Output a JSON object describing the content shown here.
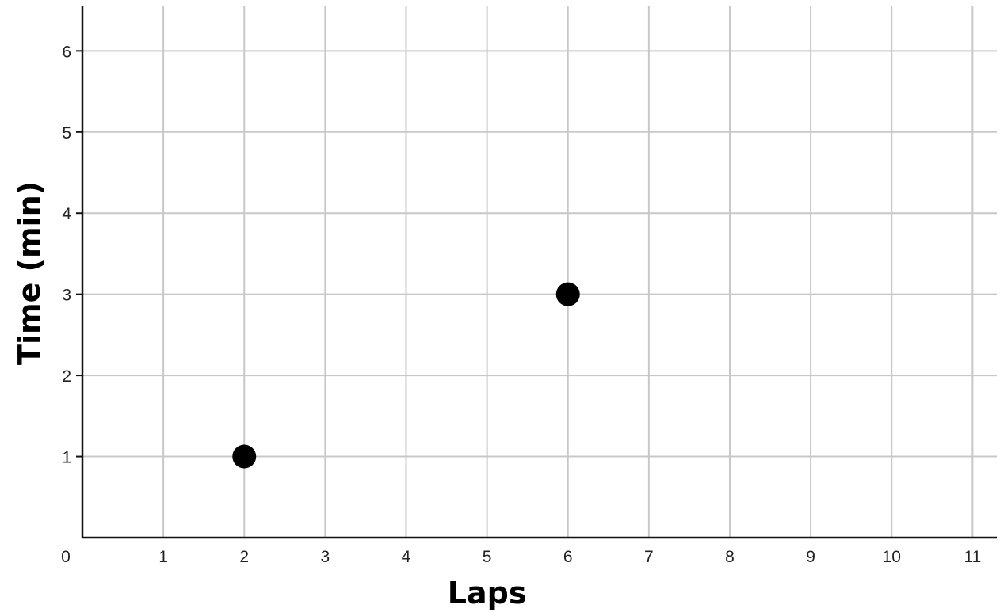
{
  "chart_data": {
    "type": "scatter",
    "title": "",
    "xlabel": "Laps",
    "ylabel": "Time (min)",
    "xlim": [
      0,
      11.3
    ],
    "ylim": [
      0,
      6.55
    ],
    "x_ticks": [
      0,
      1,
      2,
      3,
      4,
      5,
      6,
      7,
      8,
      9,
      10,
      11
    ],
    "y_ticks": [
      1,
      2,
      3,
      4,
      5,
      6
    ],
    "grid": true,
    "series": [
      {
        "points": [
          {
            "x": 2,
            "y": 1
          },
          {
            "x": 6,
            "y": 3
          }
        ]
      }
    ],
    "colors": {
      "grid": "#c8c8c8",
      "axis": "#111111",
      "point": "#000000"
    }
  }
}
